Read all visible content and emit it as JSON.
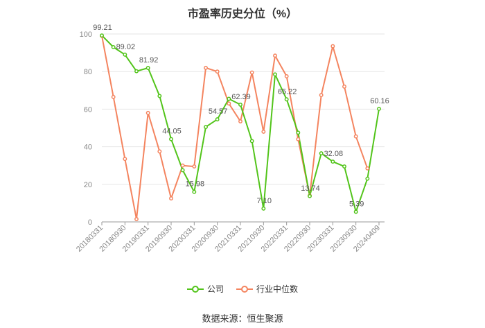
{
  "chart_data": {
    "type": "line",
    "title": "市盈率历史分位（%）",
    "xlabel": "",
    "ylabel": "",
    "ylim": [
      0,
      100
    ],
    "yticks": [
      0,
      20,
      40,
      60,
      80,
      100
    ],
    "grid": true,
    "legend_position": "bottom",
    "x": [
      "20180331",
      "20180630",
      "20180930",
      "20181231",
      "20190331",
      "20190630",
      "20190930",
      "20191231",
      "20200331",
      "20200630",
      "20200930",
      "20201231",
      "20210331",
      "20210630",
      "20210930",
      "20211231",
      "20220331",
      "20220630",
      "20220930",
      "20221231",
      "20230331",
      "20230630",
      "20230930",
      "20231231",
      "20240409"
    ],
    "x_tick_labels": [
      "20180331",
      "20180930",
      "20190331",
      "20190930",
      "20200331",
      "20200930",
      "20210331",
      "20210930",
      "20220331",
      "20220930",
      "20230331",
      "20230930",
      "20240409"
    ],
    "series": [
      {
        "name": "公司",
        "color": "#52c41a",
        "values": [
          99.21,
          93.0,
          89.02,
          80.2,
          81.92,
          67.0,
          44.05,
          27.5,
          15.98,
          50.5,
          54.57,
          65.5,
          62.39,
          43.0,
          7.1,
          78.5,
          65.22,
          47.5,
          13.74,
          36.5,
          32.08,
          29.5,
          5.39,
          23.0,
          60.16
        ],
        "data_labels": [
          {
            "index": 0,
            "text": "99.21"
          },
          {
            "index": 2,
            "text": "89.02"
          },
          {
            "index": 4,
            "text": "81.92"
          },
          {
            "index": 6,
            "text": "44.05"
          },
          {
            "index": 8,
            "text": "15.98"
          },
          {
            "index": 10,
            "text": "54.57"
          },
          {
            "index": 12,
            "text": "62.39"
          },
          {
            "index": 14,
            "text": "7.10"
          },
          {
            "index": 16,
            "text": "65.22"
          },
          {
            "index": 18,
            "text": "13.74"
          },
          {
            "index": 20,
            "text": "32.08"
          },
          {
            "index": 22,
            "text": "5.39"
          },
          {
            "index": 24,
            "text": "60.16"
          }
        ]
      },
      {
        "name": "行业中位数",
        "color": "#f4845f",
        "values": [
          99.0,
          66.5,
          33.5,
          1.5,
          58.0,
          37.5,
          12.5,
          30.0,
          29.5,
          82.0,
          80.0,
          63.0,
          53.5,
          79.5,
          48.0,
          88.5,
          77.5,
          44.0,
          14.0,
          67.5,
          93.5,
          72.0,
          45.5,
          28.5,
          null
        ]
      }
    ]
  },
  "source": "数据来源：恒生聚源"
}
